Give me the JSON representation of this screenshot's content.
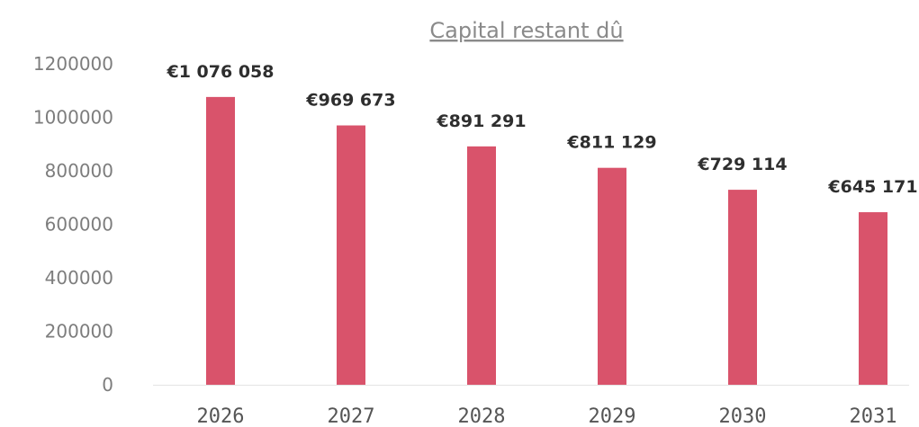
{
  "chart_data": {
    "type": "bar",
    "title": "Capital restant dû",
    "xlabel": "",
    "ylabel": "",
    "categories": [
      "2026",
      "2027",
      "2028",
      "2029",
      "2030",
      "2031"
    ],
    "values": [
      1076058,
      969673,
      891291,
      811129,
      729114,
      645171
    ],
    "data_labels": [
      "€1 076 058",
      "€969 673",
      "€891 291",
      "€811 129",
      "€729 114",
      "€645 171"
    ],
    "y_ticks": [
      "0",
      "200000",
      "400000",
      "600000",
      "800000",
      "1000000",
      "1200000"
    ],
    "ylim": [
      0,
      1200000
    ],
    "grid": false,
    "legend": "none",
    "bar_color": "#d9536b",
    "baseline_color": "#e3e3e3"
  }
}
